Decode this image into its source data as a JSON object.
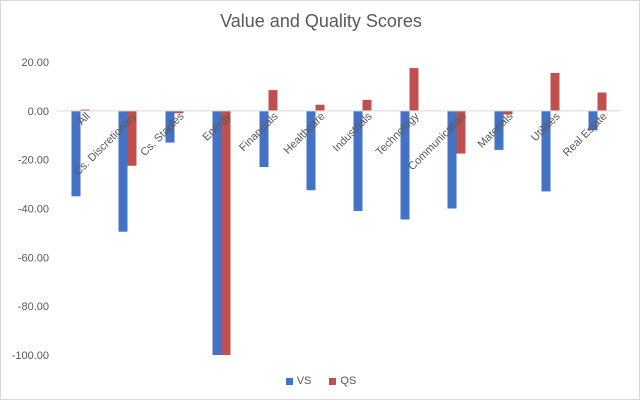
{
  "chart_data": {
    "type": "bar",
    "title": "Value and Quality Scores",
    "xlabel": "",
    "ylabel": "",
    "categories": [
      "All",
      "Cs. Discretionary",
      "Cs. Staples",
      "Energy",
      "Financials",
      "Healthcare",
      "Industrials",
      "Technology",
      "Communication",
      "Materials",
      "Utilities",
      "Real Estate"
    ],
    "series": [
      {
        "name": "VS",
        "color": "#4472c4",
        "values": [
          -35,
          -49.5,
          -13,
          -100,
          -23,
          -32.5,
          -41,
          -44.5,
          -40,
          -16,
          -33,
          -8
        ]
      },
      {
        "name": "QS",
        "color": "#c0504d",
        "values": [
          0.5,
          -22.5,
          -1,
          -100,
          8.5,
          2.5,
          4.5,
          17.5,
          -17.5,
          -1.5,
          15.5,
          7.5
        ]
      }
    ],
    "ylim": [
      -100,
      20
    ],
    "yticks": [
      "20.00",
      "0.00",
      "-20.00",
      "-40.00",
      "-60.00",
      "-80.00",
      "-100.00"
    ],
    "grid": false,
    "legend": "bottom"
  }
}
